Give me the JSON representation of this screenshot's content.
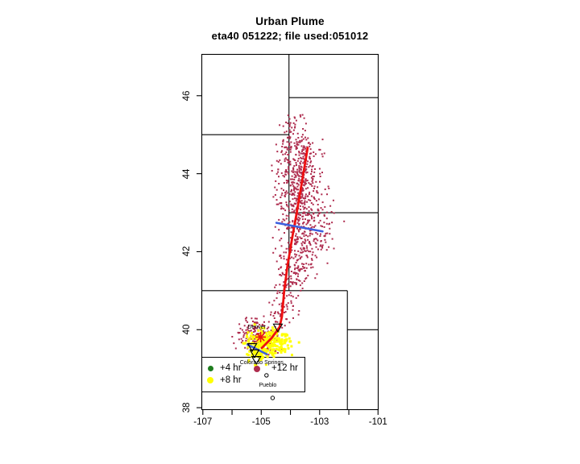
{
  "chart_data": {
    "type": "scatter",
    "title": "Urban Plume",
    "subtitle": "eta40 051222; file used:051012",
    "xlabel": "",
    "ylabel": "",
    "xlim": [
      -107.05,
      -100.98
    ],
    "ylim": [
      37.94,
      47.07
    ],
    "grid": "off",
    "x_ticks": [
      {
        "value": -107,
        "label": "-107"
      },
      {
        "value": -106,
        "label": ""
      },
      {
        "value": -105,
        "label": "-105"
      },
      {
        "value": -104,
        "label": ""
      },
      {
        "value": -103,
        "label": "-103"
      },
      {
        "value": -102,
        "label": ""
      },
      {
        "value": -101,
        "label": "-101"
      }
    ],
    "y_ticks": [
      {
        "value": 38,
        "label": "38"
      },
      {
        "value": 40,
        "label": "40"
      },
      {
        "value": 42,
        "label": "42"
      },
      {
        "value": 44,
        "label": "44"
      },
      {
        "value": 46,
        "label": "46"
      }
    ],
    "state_borders": [
      [
        [
          -104.05,
          47.07
        ],
        [
          -104.05,
          41.0
        ]
      ],
      [
        [
          -104.05,
          45.95
        ],
        [
          -100.98,
          45.95
        ]
      ],
      [
        [
          -107.05,
          45.0
        ],
        [
          -104.05,
          45.0
        ]
      ],
      [
        [
          -104.05,
          43.0
        ],
        [
          -100.98,
          43.0
        ]
      ],
      [
        [
          -107.05,
          41.0
        ],
        [
          -102.05,
          41.0
        ]
      ],
      [
        [
          -102.05,
          41.0
        ],
        [
          -102.05,
          37.94
        ]
      ],
      [
        [
          -102.05,
          40.0
        ],
        [
          -100.98,
          40.0
        ]
      ]
    ],
    "cities": [
      {
        "name": "Denver",
        "lon": -104.99,
        "lat": 39.74
      },
      {
        "name": "Colorado Springs",
        "lon": -104.82,
        "lat": 38.83
      },
      {
        "name": "Pueblo",
        "lon": -104.61,
        "lat": 38.25
      }
    ],
    "trajectory": {
      "color": "#ee1010",
      "points": [
        [
          -103.41,
          44.66
        ],
        [
          -103.6,
          43.81
        ],
        [
          -103.79,
          42.98
        ],
        [
          -103.93,
          42.4
        ],
        [
          -104.1,
          41.64
        ],
        [
          -104.21,
          41.02
        ],
        [
          -104.29,
          40.34
        ],
        [
          -104.37,
          40.07
        ],
        [
          -104.65,
          39.78
        ],
        [
          -104.98,
          39.53
        ]
      ]
    },
    "cross_sections": [
      {
        "color": "#3d5fde",
        "from": [
          -104.48,
          42.74
        ],
        "to": [
          -102.9,
          42.52
        ]
      },
      {
        "color": "#3d5fde",
        "from": [
          -105.47,
          39.62
        ],
        "to": [
          -104.81,
          39.37
        ]
      }
    ],
    "release_marker": {
      "shape": "star",
      "color": "#ee1010",
      "lon": -105.02,
      "lat": 39.81
    },
    "sounding_triangles": [
      [
        -104.43,
        40.05
      ],
      [
        -105.31,
        39.55
      ],
      [
        -105.23,
        39.39
      ],
      [
        -105.17,
        39.22
      ]
    ],
    "particles": {
      "plume_12hr": {
        "color": "#ae2c4e",
        "clusters": [
          {
            "lon": -103.88,
            "lat": 45.32,
            "sd_lon": 0.17,
            "sd_lat": 0.15,
            "n": 25
          },
          {
            "lon": -103.79,
            "lat": 44.64,
            "sd_lon": 0.33,
            "sd_lat": 0.25,
            "n": 120
          },
          {
            "lon": -103.68,
            "lat": 44.02,
            "sd_lon": 0.39,
            "sd_lat": 0.25,
            "n": 160
          },
          {
            "lon": -103.6,
            "lat": 43.4,
            "sd_lon": 0.44,
            "sd_lat": 0.25,
            "n": 160
          },
          {
            "lon": -103.52,
            "lat": 42.78,
            "sd_lon": 0.47,
            "sd_lat": 0.25,
            "n": 150
          },
          {
            "lon": -103.6,
            "lat": 42.16,
            "sd_lon": 0.41,
            "sd_lat": 0.23,
            "n": 110
          },
          {
            "lon": -103.82,
            "lat": 41.64,
            "sd_lon": 0.33,
            "sd_lat": 0.19,
            "n": 70
          },
          {
            "lon": -104.01,
            "lat": 41.12,
            "sd_lon": 0.25,
            "sd_lat": 0.17,
            "n": 45
          },
          {
            "lon": -104.2,
            "lat": 40.61,
            "sd_lon": 0.19,
            "sd_lat": 0.17,
            "n": 30
          },
          {
            "lon": -104.37,
            "lat": 40.23,
            "sd_lon": 0.17,
            "sd_lat": 0.12,
            "n": 22
          },
          {
            "lon": -105.22,
            "lat": 39.9,
            "sd_lon": 0.3,
            "sd_lat": 0.19,
            "n": 130
          },
          {
            "lon": -104.76,
            "lat": 39.67,
            "sd_lon": 0.22,
            "sd_lat": 0.15,
            "n": 45
          },
          {
            "lon": -102.69,
            "lat": 42.47,
            "sd_lon": 0.22,
            "sd_lat": 0.21,
            "n": 12
          }
        ]
      },
      "plume_8hr": {
        "color": "#ffff00",
        "clusters": [
          {
            "lon": -104.76,
            "lat": 39.69,
            "sd_lon": 0.36,
            "sd_lat": 0.17,
            "n": 230
          },
          {
            "lon": -105.12,
            "lat": 39.37,
            "sd_lon": 0.19,
            "sd_lat": 0.12,
            "n": 45
          }
        ]
      }
    },
    "legend": {
      "position": "bottom-left-inside",
      "items": [
        {
          "label": "+4 hr",
          "color": "#1e7d1e"
        },
        {
          "label": "+8 hr",
          "color": "#ffff00"
        },
        {
          "label": "+12 hr",
          "color": "#ae2c4e"
        }
      ]
    }
  }
}
